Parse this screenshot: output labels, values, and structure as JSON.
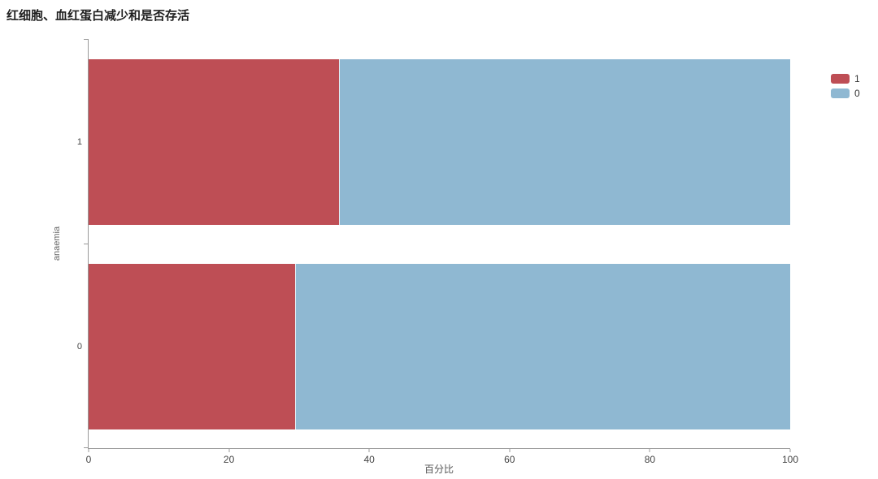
{
  "title": "红细胞、血红蛋白减少和是否存活",
  "chart_data": {
    "type": "bar",
    "orientation": "horizontal",
    "stacked": true,
    "unit": "percent",
    "title": "红细胞、血红蛋白减少和是否存活",
    "xlabel": "百分比",
    "ylabel": "anaemia",
    "categories": [
      "1",
      "0"
    ],
    "series": [
      {
        "name": "1",
        "color": "#be4e55",
        "values": [
          35.66,
          29.41
        ]
      },
      {
        "name": "0",
        "color": "#8fb8d2",
        "values": [
          64.34,
          70.59
        ]
      }
    ],
    "xlim": [
      0,
      100
    ],
    "x_ticks": [
      "0",
      "20",
      "40",
      "60",
      "80",
      "100"
    ],
    "grid": false,
    "legend": {
      "position": "top-right",
      "entries": [
        "1",
        "0"
      ]
    },
    "axis_color": "#999999"
  }
}
